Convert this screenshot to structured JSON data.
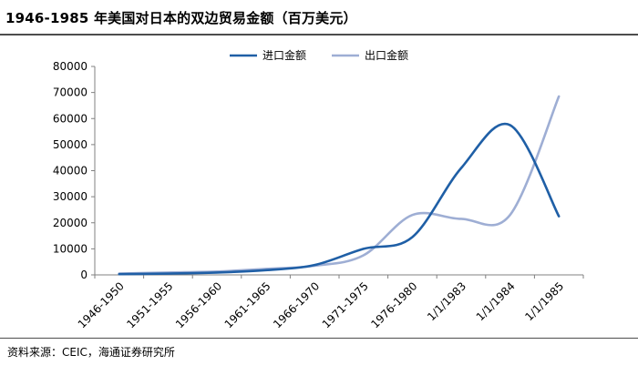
{
  "title": "1946-1985 年美国对日本的双边贸易金额（百万美元）",
  "source": "资料来源：CEIC，海通证券研究所",
  "chart_data": {
    "type": "line",
    "title": "1946-1985 年美国对日本的双边贸易金额（百万美元）",
    "xlabel": "",
    "ylabel": "",
    "categories": [
      "1946-1950",
      "1951-1955",
      "1956-1960",
      "1961-1965",
      "1966-1970",
      "1971-1975",
      "1976-1980",
      "1/1/1983",
      "1/1/1984",
      "1/1/1985"
    ],
    "series": [
      {
        "name": "进口金额",
        "color": "#1f5fa6",
        "values": [
          300,
          500,
          900,
          1800,
          3800,
          10000,
          14500,
          41000,
          57500,
          22500
        ]
      },
      {
        "name": "出口金额",
        "color": "#9eaed4",
        "values": [
          500,
          900,
          1300,
          2300,
          3500,
          7500,
          23000,
          21500,
          23000,
          68500
        ]
      }
    ],
    "ylim": [
      0,
      80000
    ],
    "yticks": [
      "0",
      "10000",
      "20000",
      "30000",
      "40000",
      "50000",
      "60000",
      "70000",
      "80000"
    ],
    "grid": false,
    "legend": "top-center"
  }
}
